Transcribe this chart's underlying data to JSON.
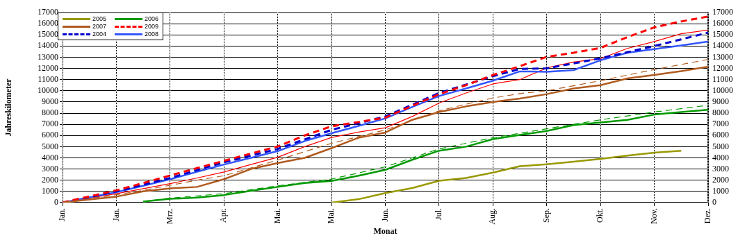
{
  "chart_data": {
    "type": "line",
    "xlabel": "Monat",
    "ylabel": "Jahreskilometer",
    "categories": [
      "Jan.",
      null,
      "Jan.",
      null,
      "Mrz.",
      null,
      "Apr.",
      null,
      "Mai.",
      null,
      "Mai.",
      null,
      "Jun.",
      null,
      "Jul.",
      null,
      "Aug.",
      null,
      "Sep.",
      null,
      "Okt.",
      null,
      "Nov.",
      null,
      "Dez."
    ],
    "ylim": [
      0,
      17000
    ],
    "yticks": [
      0,
      1000,
      2000,
      3000,
      4000,
      5000,
      6000,
      7000,
      8000,
      9000,
      10000,
      11000,
      12000,
      13000,
      14000,
      15000,
      16000,
      17000
    ],
    "y2lim": [
      0,
      17000
    ],
    "y2ticks": [
      0,
      1000,
      2000,
      3000,
      4000,
      5000,
      6000,
      7000,
      8000,
      9000,
      10000,
      11000,
      12000,
      13000,
      14000,
      15000,
      16000,
      17000
    ],
    "grid": true,
    "legend": "top left",
    "marker": "none",
    "series": [
      {
        "name": "2005",
        "color": "#999900",
        "line_style": "solid",
        "values": [
          null,
          null,
          null,
          null,
          null,
          null,
          null,
          null,
          null,
          null,
          0,
          300,
          850,
          1300,
          1950,
          2200,
          2680,
          3250,
          3420,
          3650,
          3900,
          4200,
          4470,
          4640,
          null
        ]
      },
      {
        "name": "2006",
        "color": "#009900",
        "line_style": "solid",
        "values": [
          null,
          null,
          null,
          90,
          330,
          450,
          670,
          1050,
          1400,
          1750,
          1930,
          2400,
          2930,
          3830,
          4640,
          5000,
          5670,
          6050,
          6400,
          6930,
          7170,
          7400,
          7870,
          8090,
          8300
        ]
      },
      {
        "name": "2007",
        "color": "#b05a1e",
        "line_style": "solid",
        "values": [
          0,
          270,
          530,
          1000,
          1270,
          1400,
          2090,
          3000,
          3530,
          4000,
          4870,
          5800,
          6270,
          7400,
          8090,
          8600,
          9000,
          9300,
          9700,
          10200,
          10500,
          11100,
          11420,
          11750,
          12150
        ]
      },
      {
        "name": "2009",
        "color": "#ff0000",
        "line_style": "dashed",
        "values": [
          0,
          550,
          1090,
          1750,
          2420,
          3080,
          3730,
          4380,
          5020,
          6000,
          6820,
          7200,
          7600,
          8650,
          9690,
          10500,
          11400,
          12200,
          13030,
          13400,
          13830,
          14800,
          15670,
          16200,
          16640
        ]
      },
      {
        "name": "2004",
        "color": "#0000cc",
        "line_style": "dashed",
        "values": [
          0,
          500,
          1000,
          1600,
          2200,
          2900,
          3600,
          4200,
          4800,
          5650,
          6500,
          7100,
          7700,
          8750,
          9800,
          10550,
          11300,
          11950,
          12000,
          12450,
          12900,
          13450,
          14000,
          14600,
          15200
        ]
      },
      {
        "name": "2008",
        "color": "#3355ff",
        "line_style": "solid",
        "values": [
          0,
          470,
          930,
          1500,
          2090,
          2750,
          3400,
          4000,
          4600,
          5500,
          6200,
          6850,
          7530,
          8550,
          9530,
          10200,
          10900,
          11730,
          11700,
          11850,
          12730,
          13400,
          13730,
          14050,
          14400
        ]
      },
      {
        "color": "#ff0000",
        "line_style": "solid",
        "values": [
          0,
          400,
          800,
          1250,
          1690,
          2200,
          2730,
          3400,
          4050,
          5000,
          5820,
          6300,
          6690,
          7700,
          8900,
          9800,
          10610,
          11000,
          12040,
          12570,
          12870,
          13790,
          14400,
          15100,
          15440
        ]
      },
      {
        "color": "#b05a1e",
        "line_style": "dashed",
        "values": [
          0,
          350,
          700,
          1100,
          1550,
          2000,
          2400,
          3100,
          3800,
          4550,
          5300,
          5900,
          6500,
          7350,
          8200,
          8800,
          9350,
          9750,
          10000,
          10450,
          10900,
          11400,
          11900,
          12350,
          12800
        ]
      },
      {
        "color": "#009900",
        "line_style": "dashed",
        "values": [
          null,
          null,
          null,
          90,
          400,
          600,
          800,
          1150,
          1500,
          1800,
          2100,
          2650,
          3200,
          4000,
          4800,
          5300,
          5800,
          6200,
          6600,
          7000,
          7400,
          7750,
          8100,
          8400,
          8700
        ]
      }
    ]
  }
}
